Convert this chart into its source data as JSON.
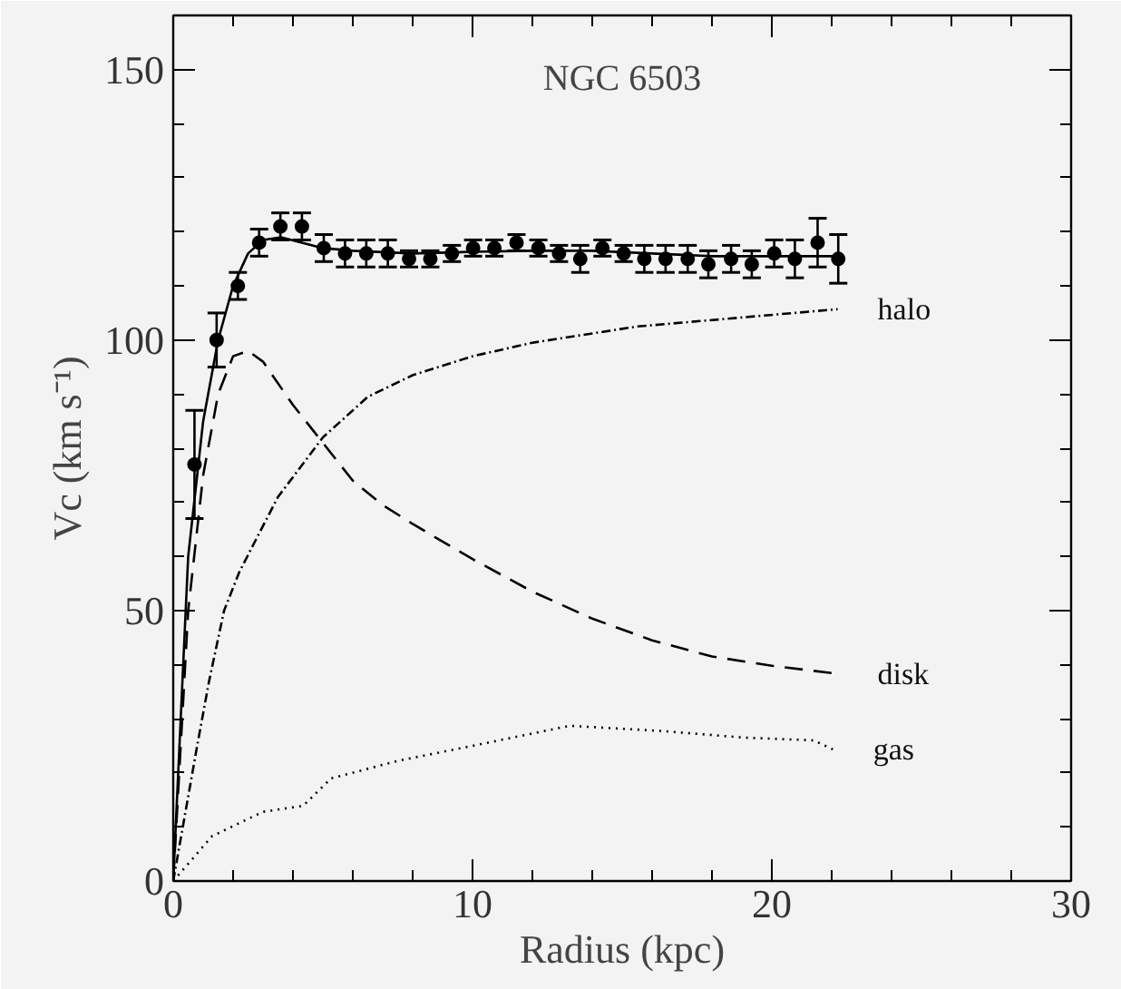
{
  "chart_data": {
    "type": "line",
    "title": "NGC 6503",
    "xlabel": "Radius (kpc)",
    "ylabel": "Vc (km s⁻¹)",
    "xlim": [
      0,
      30
    ],
    "ylim": [
      0,
      160
    ],
    "xticks": [
      0,
      10,
      20,
      30
    ],
    "yticks": [
      0,
      50,
      100,
      150
    ],
    "grid": false,
    "series": [
      {
        "type": "scatter",
        "marker": "circle",
        "color": "#000000",
        "x": [
          0.71,
          1.45,
          2.16,
          2.87,
          3.58,
          4.3,
          5.03,
          5.74,
          6.45,
          7.17,
          7.88,
          8.59,
          9.31,
          10.02,
          10.73,
          11.47,
          12.2,
          12.89,
          13.6,
          14.34,
          15.05,
          15.74,
          16.45,
          17.19,
          17.88,
          18.64,
          19.33,
          20.08,
          20.77,
          21.53,
          22.22
        ],
        "values": [
          77,
          100,
          110,
          118,
          121,
          121,
          117,
          116,
          116,
          116,
          115,
          115,
          116,
          117,
          117,
          118,
          117,
          116,
          115,
          117,
          116,
          115,
          115,
          115,
          114,
          115,
          114,
          116,
          115,
          118,
          115
        ],
        "errors": [
          10,
          5,
          2.5,
          2.5,
          2.5,
          2.5,
          2.5,
          2.5,
          2.5,
          2.5,
          1.5,
          1.5,
          1.5,
          1.5,
          1.5,
          1.5,
          1.5,
          1.5,
          2.5,
          1.5,
          1.5,
          2.5,
          2.5,
          2.5,
          2.5,
          2.5,
          2.5,
          2.5,
          3.5,
          4.5,
          4.5
        ]
      },
      {
        "line_style": "solid",
        "color": "#000000",
        "x": [
          0,
          0.5,
          1,
          1.5,
          2,
          2.5,
          3,
          3.6,
          4.3,
          5,
          6,
          8,
          10,
          12,
          14,
          16,
          18,
          20,
          22.2
        ],
        "values": [
          0,
          60,
          85,
          100,
          110,
          116,
          118.5,
          119,
          118,
          117,
          116.5,
          116,
          116.3,
          116.5,
          116.5,
          116,
          115.5,
          115.5,
          115.5
        ]
      },
      {
        "name": "halo",
        "line_style": "dashdot",
        "color": "#000000",
        "x": [
          0,
          0.8,
          1.2,
          1.7,
          2.2,
          2.66,
          3.5,
          5,
          6.5,
          8,
          10,
          12,
          15.5,
          22.2
        ],
        "values": [
          0,
          25,
          37,
          50,
          57,
          62,
          71,
          82,
          89.5,
          93.5,
          97,
          99.5,
          102.5,
          105.7
        ]
      },
      {
        "name": "disk",
        "line_style": "dashed",
        "color": "#000000",
        "x": [
          0,
          0.5,
          1,
          1.5,
          2,
          2.5,
          3,
          4,
          5,
          6,
          7,
          8,
          10,
          12,
          14,
          16,
          18,
          20,
          22.2
        ],
        "values": [
          0,
          50,
          75,
          90,
          97,
          98,
          96,
          88,
          81,
          74,
          69.5,
          66,
          59.5,
          53.5,
          48.5,
          44.5,
          41.5,
          39.8,
          38.3
        ]
      },
      {
        "name": "gas",
        "line_style": "dotted",
        "color": "#000000",
        "x": [
          0,
          1.3,
          3.0,
          4.34,
          5.28,
          7.58,
          10.1,
          13.25,
          16.4,
          19.1,
          21.4,
          22.05
        ],
        "values": [
          0,
          8.3,
          12.8,
          13.9,
          19,
          22.3,
          25.1,
          28.7,
          27.7,
          26.5,
          26,
          24.3
        ]
      }
    ]
  }
}
